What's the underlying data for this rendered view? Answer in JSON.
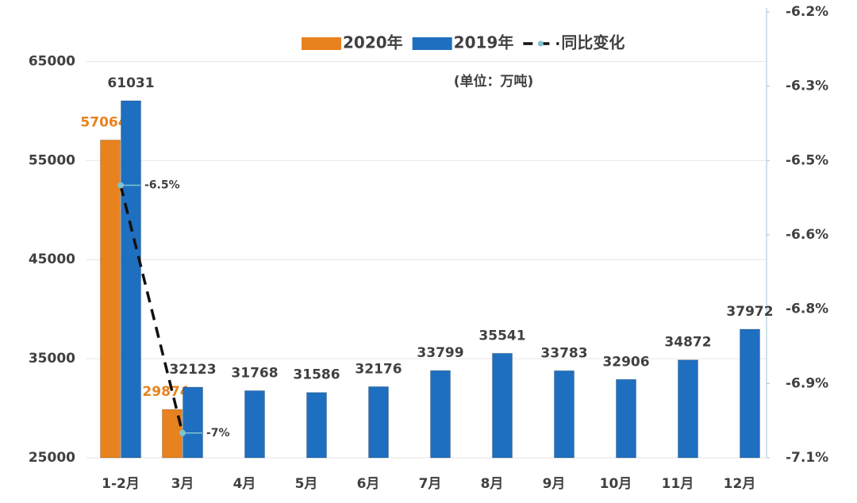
{
  "chart_data": {
    "type": "bar",
    "subtitle": "(单位：万吨)",
    "categories": [
      "1-2月",
      "3月",
      "4月",
      "5月",
      "6月",
      "7月",
      "8月",
      "9月",
      "10月",
      "11月",
      "12月"
    ],
    "series": [
      {
        "name": "2020年",
        "color": "#e8821e",
        "values": [
          57064,
          29874,
          null,
          null,
          null,
          null,
          null,
          null,
          null,
          null,
          null
        ]
      },
      {
        "name": "2019年",
        "color": "#1f6fc0",
        "values": [
          61031,
          32123,
          31768,
          31586,
          32176,
          33799,
          35541,
          33783,
          32906,
          34872,
          37972
        ]
      },
      {
        "name": "同比变化",
        "type": "line",
        "axis": "y2",
        "color": "#111111",
        "values": [
          -6.5,
          -7,
          null,
          null,
          null,
          null,
          null,
          null,
          null,
          null,
          null
        ],
        "value_labels": [
          "-6.5%",
          "-7%",
          null,
          null,
          null,
          null,
          null,
          null,
          null,
          null,
          null
        ]
      }
    ],
    "ylim": [
      25000,
      70000
    ],
    "yticks": [
      25000,
      35000,
      45000,
      55000,
      65000
    ],
    "y2lim": [
      -7.05,
      -6.15
    ],
    "y2ticks": [
      {
        "value": -6.15,
        "label": "-6.2%"
      },
      {
        "value": -6.3,
        "label": "-6.3%"
      },
      {
        "value": -6.45,
        "label": "-6.5%"
      },
      {
        "value": -6.6,
        "label": "-6.6%"
      },
      {
        "value": -6.75,
        "label": "-6.8%"
      },
      {
        "value": -6.9,
        "label": "-6.9%"
      },
      {
        "value": -7.05,
        "label": "-7.1%"
      }
    ],
    "grid": true,
    "legend": "top"
  }
}
